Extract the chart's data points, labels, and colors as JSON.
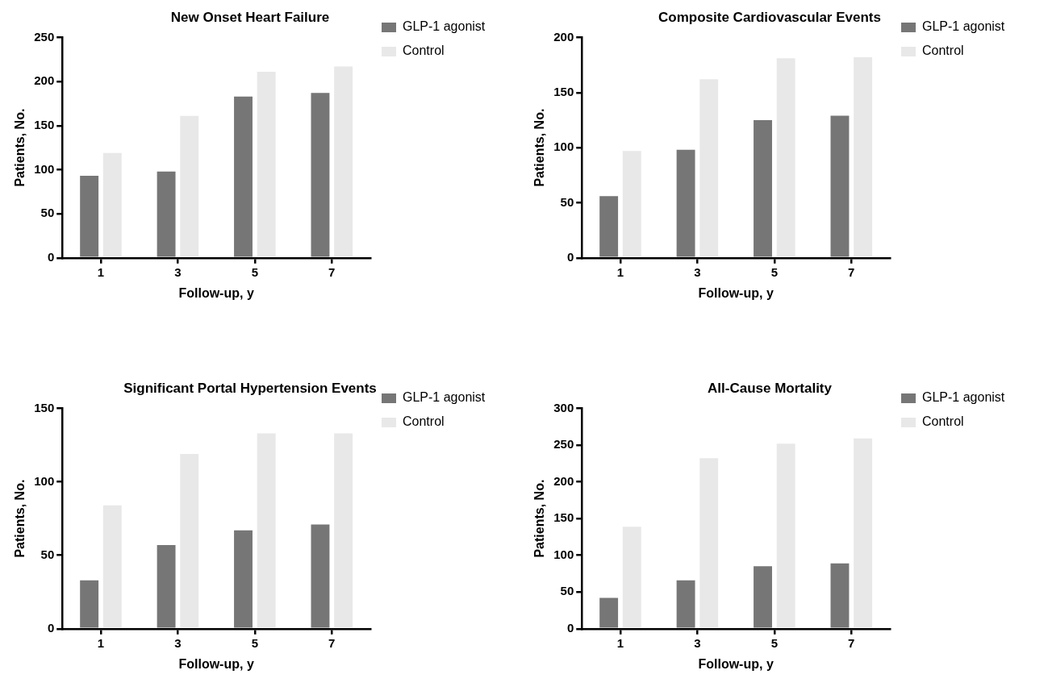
{
  "chart_data": [
    {
      "type": "bar",
      "title": "New Onset Heart Failure",
      "xlabel": "Follow-up, y",
      "ylabel": "Patients, No.",
      "categories": [
        "1",
        "3",
        "5",
        "7"
      ],
      "ylim": [
        0,
        250
      ],
      "yticks": [
        0,
        50,
        100,
        150,
        200,
        250
      ],
      "legend": "top right",
      "series": [
        {
          "name": "GLP-1 agonist",
          "color": "#767676",
          "values": [
            93,
            98,
            183,
            187
          ]
        },
        {
          "name": "Control",
          "color": "#e8e8e8",
          "values": [
            119,
            161,
            211,
            217
          ]
        }
      ]
    },
    {
      "type": "bar",
      "title": "Composite Cardiovascular Events",
      "xlabel": "Follow-up, y",
      "ylabel": "Patients, No.",
      "categories": [
        "1",
        "3",
        "5",
        "7"
      ],
      "ylim": [
        0,
        200
      ],
      "yticks": [
        0,
        50,
        100,
        150,
        200
      ],
      "legend": "top right",
      "series": [
        {
          "name": "GLP-1 agonist",
          "color": "#767676",
          "values": [
            56,
            98,
            125,
            129
          ]
        },
        {
          "name": "Control",
          "color": "#e8e8e8",
          "values": [
            97,
            162,
            181,
            182
          ]
        }
      ]
    },
    {
      "type": "bar",
      "title": "Significant Portal Hypertension Events",
      "xlabel": "Follow-up, y",
      "ylabel": "Patients, No.",
      "categories": [
        "1",
        "3",
        "5",
        "7"
      ],
      "ylim": [
        0,
        150
      ],
      "yticks": [
        0,
        50,
        100,
        150
      ],
      "legend": "top right",
      "series": [
        {
          "name": "GLP-1 agonist",
          "color": "#767676",
          "values": [
            33,
            57,
            67,
            71
          ]
        },
        {
          "name": "Control",
          "color": "#e8e8e8",
          "values": [
            84,
            119,
            133,
            133
          ]
        }
      ]
    },
    {
      "type": "bar",
      "title": "All-Cause Mortality",
      "xlabel": "Follow-up, y",
      "ylabel": "Patients, No.",
      "categories": [
        "1",
        "3",
        "5",
        "7"
      ],
      "ylim": [
        0,
        300
      ],
      "yticks": [
        0,
        50,
        100,
        150,
        200,
        250,
        300
      ],
      "legend": "top right",
      "series": [
        {
          "name": "GLP-1 agonist",
          "color": "#767676",
          "values": [
            42,
            66,
            85,
            89
          ]
        },
        {
          "name": "Control",
          "color": "#e8e8e8",
          "values": [
            139,
            232,
            252,
            259
          ]
        }
      ]
    }
  ]
}
